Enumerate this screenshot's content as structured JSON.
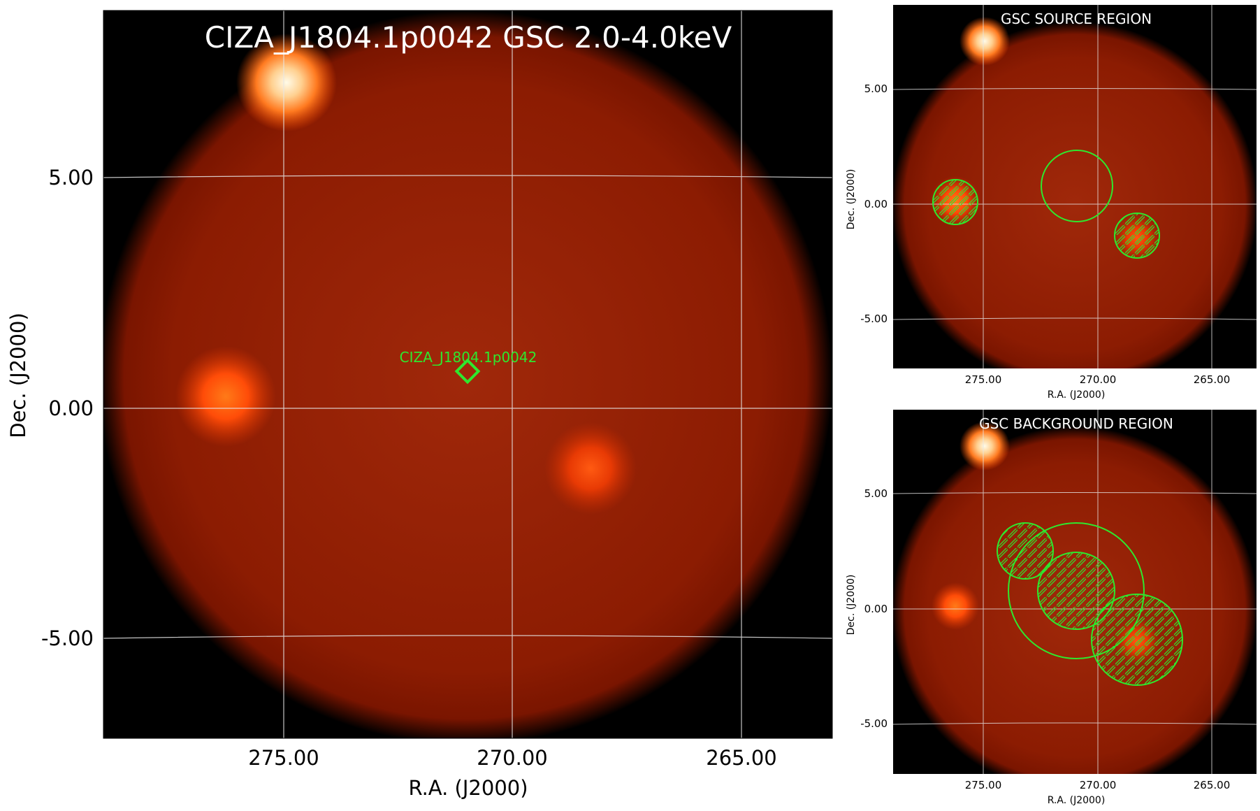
{
  "main_panel": {
    "title": "CIZA_J1804.1p0042 GSC 2.0-4.0keV",
    "xlabel": "R.A. (J2000)",
    "ylabel": "Dec. (J2000)",
    "xticks": [
      "275.00",
      "270.00",
      "265.00"
    ],
    "yticks": [
      "5.00",
      "0.00",
      "-5.00"
    ],
    "target_label": "CIZA_J1804.1p0042"
  },
  "source_panel": {
    "title": "GSC SOURCE REGION",
    "xlabel": "R.A. (J2000)",
    "ylabel": "Dec. (J2000)",
    "xticks": [
      "275.00",
      "270.00",
      "265.00"
    ],
    "yticks": [
      "5.00",
      "0.00",
      "-5.00"
    ]
  },
  "background_panel": {
    "title": "GSC BACKGROUND REGION",
    "xlabel": "R.A. (J2000)",
    "ylabel": "Dec. (J2000)",
    "xticks": [
      "275.00",
      "270.00",
      "265.00"
    ],
    "yticks": [
      "5.00",
      "0.00",
      "-5.00"
    ]
  },
  "colors": {
    "background": "#000000",
    "field": "#8e1a00",
    "field_center": "#a52a04",
    "bright_source": "#fff4d8",
    "source": "#ff6a10",
    "region": "#2ee82e",
    "grid": "#e6e6e6",
    "title_text": "#ffffff"
  }
}
